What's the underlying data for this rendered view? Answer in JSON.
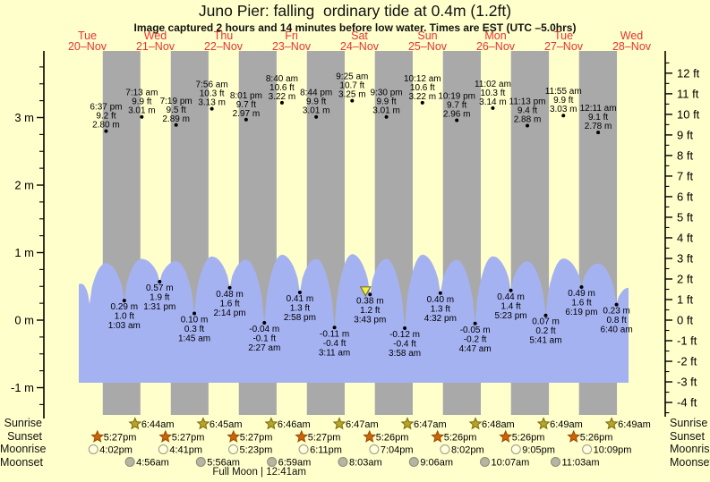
{
  "title": "Juno Pier: falling  ordinary tide at 0.4m (1.2ft)",
  "subtitle": "Image captured 2 hours and 14 minutes before low water. Times are EST (UTC –5.0hrs)",
  "colors": {
    "background": "#ffffcc",
    "night_band": "#a9a9a9",
    "water": "#a5b2f2",
    "date_label": "#e83333",
    "annotation_text": "#000000",
    "tide_dot": "#000000",
    "current_marker_fill": "#f0ee4a",
    "current_marker_stroke": "#77771c",
    "sunrise_star_fill": "#b8a427",
    "sunrise_star_stroke": "#7a6c10",
    "sunset_star_fill": "#cc6600",
    "sunset_star_stroke": "#99470a",
    "moonrise_fill": "#ffffdd",
    "moonrise_stroke": "#999988",
    "moonset_fill": "#b5b5a1",
    "moonset_stroke": "#8a8a7a"
  },
  "chart_data": {
    "type": "area",
    "title": "Juno Pier: falling  ordinary tide at 0.4m (1.2ft)",
    "days": [
      {
        "weekday": "Tue",
        "date": "20–Nov"
      },
      {
        "weekday": "Wed",
        "date": "21–Nov"
      },
      {
        "weekday": "Thu",
        "date": "22–Nov"
      },
      {
        "weekday": "Fri",
        "date": "23–Nov"
      },
      {
        "weekday": "Sat",
        "date": "24–Nov"
      },
      {
        "weekday": "Sun",
        "date": "25–Nov"
      },
      {
        "weekday": "Mon",
        "date": "26–Nov"
      },
      {
        "weekday": "Tue",
        "date": "27–Nov"
      },
      {
        "weekday": "Wed",
        "date": "28–Nov"
      }
    ],
    "y_axis_left": {
      "unit": "m",
      "values": [
        3,
        2,
        1,
        0,
        -1
      ],
      "labels": [
        "3 m",
        "2 m",
        "1 m",
        "0 m",
        "-1 m"
      ]
    },
    "y_axis_right": {
      "unit": "ft",
      "values": [
        12,
        11,
        10,
        9,
        8,
        7,
        6,
        5,
        4,
        3,
        2,
        1,
        0,
        -1,
        -2,
        -3,
        -4
      ],
      "labels": [
        "12 ft",
        "11 ft",
        "10 ft",
        "9 ft",
        "8 ft",
        "7 ft",
        "6 ft",
        "5 ft",
        "4 ft",
        "3 ft",
        "2 ft",
        "1 ft",
        "0 ft",
        "-1 ft",
        "-2 ft",
        "-3 ft",
        "-4 ft"
      ]
    },
    "high_tides": [
      {
        "day": 0,
        "time": "6:37 pm",
        "ft": "9.2 ft",
        "m": "2.80 m"
      },
      {
        "day": 1,
        "time": "7:13 am",
        "ft": "9.9 ft",
        "m": "3.01 m"
      },
      {
        "day": 1,
        "time": "7:19 pm",
        "ft": "9.5 ft",
        "m": "2.89 m"
      },
      {
        "day": 2,
        "time": "7:56 am",
        "ft": "10.3 ft",
        "m": "3.13 m"
      },
      {
        "day": 2,
        "time": "8:01 pm",
        "ft": "9.7 ft",
        "m": "2.97 m"
      },
      {
        "day": 3,
        "time": "8:40 am",
        "ft": "10.6 ft",
        "m": "3.22 m"
      },
      {
        "day": 3,
        "time": "8:44 pm",
        "ft": "9.9 ft",
        "m": "3.01 m"
      },
      {
        "day": 4,
        "time": "9:25 am",
        "ft": "10.7 ft",
        "m": "3.25 m"
      },
      {
        "day": 4,
        "time": "9:30 pm",
        "ft": "9.9 ft",
        "m": "3.01 m"
      },
      {
        "day": 5,
        "time": "10:12 am",
        "ft": "10.6 ft",
        "m": "3.22 m"
      },
      {
        "day": 5,
        "time": "10:19 pm",
        "ft": "9.7 ft",
        "m": "2.96 m"
      },
      {
        "day": 6,
        "time": "11:02 am",
        "ft": "10.3 ft",
        "m": "3.14 m"
      },
      {
        "day": 6,
        "time": "11:13 pm",
        "ft": "9.4 ft",
        "m": "2.88 m"
      },
      {
        "day": 7,
        "time": "11:55 am",
        "ft": "9.9 ft",
        "m": "3.03 m"
      },
      {
        "day": 8,
        "time": "12:11 am",
        "ft": "9.1 ft",
        "m": "2.78 m"
      }
    ],
    "low_tides": [
      {
        "day": 1,
        "time": "1:03 am",
        "ft": "1.0 ft",
        "m": "0.29 m"
      },
      {
        "day": 1,
        "time": "1:31 pm",
        "ft": "1.9 ft",
        "m": "0.57 m"
      },
      {
        "day": 2,
        "time": "1:45 am",
        "ft": "0.3 ft",
        "m": "0.10 m"
      },
      {
        "day": 2,
        "time": "2:14 pm",
        "ft": "1.6 ft",
        "m": "0.48 m"
      },
      {
        "day": 3,
        "time": "2:27 am",
        "ft": "-0.1 ft",
        "m": "-0.04 m"
      },
      {
        "day": 3,
        "time": "2:58 pm",
        "ft": "1.3 ft",
        "m": "0.41 m"
      },
      {
        "day": 4,
        "time": "3:11 am",
        "ft": "-0.4 ft",
        "m": "-0.11 m"
      },
      {
        "day": 4,
        "time": "3:43 pm",
        "ft": "1.2 ft",
        "m": "0.38 m",
        "current": true
      },
      {
        "day": 5,
        "time": "3:58 am",
        "ft": "-0.4 ft",
        "m": "-0.12 m"
      },
      {
        "day": 5,
        "time": "4:32 pm",
        "ft": "1.3 ft",
        "m": "0.40 m"
      },
      {
        "day": 6,
        "time": "4:47 am",
        "ft": "-0.2 ft",
        "m": "-0.05 m"
      },
      {
        "day": 6,
        "time": "5:23 pm",
        "ft": "1.4 ft",
        "m": "0.44 m"
      },
      {
        "day": 7,
        "time": "5:41 am",
        "ft": "0.2 ft",
        "m": "0.07 m"
      },
      {
        "day": 7,
        "time": "6:19 pm",
        "ft": "1.6 ft",
        "m": "0.49 m"
      },
      {
        "day": 8,
        "time": "6:40 am",
        "ft": "0.8 ft",
        "m": "0.23 m"
      }
    ],
    "astro": {
      "sunrise": {
        "label": "Sunrise",
        "times": [
          {
            "day": 1,
            "time": "6:44am"
          },
          {
            "day": 2,
            "time": "6:45am"
          },
          {
            "day": 3,
            "time": "6:46am"
          },
          {
            "day": 4,
            "time": "6:47am"
          },
          {
            "day": 5,
            "time": "6:47am"
          },
          {
            "day": 6,
            "time": "6:48am"
          },
          {
            "day": 7,
            "time": "6:49am"
          },
          {
            "day": 8,
            "time": "6:49am"
          }
        ]
      },
      "sunset": {
        "label": "Sunset",
        "times": [
          {
            "day": 0,
            "time": "5:27pm"
          },
          {
            "day": 1,
            "time": "5:27pm"
          },
          {
            "day": 2,
            "time": "5:27pm"
          },
          {
            "day": 3,
            "time": "5:27pm"
          },
          {
            "day": 4,
            "time": "5:26pm"
          },
          {
            "day": 5,
            "time": "5:26pm"
          },
          {
            "day": 6,
            "time": "5:26pm"
          },
          {
            "day": 7,
            "time": "5:26pm"
          }
        ]
      },
      "moonrise": {
        "label": "Moonrise",
        "times": [
          {
            "day": 0,
            "time": "4:02pm"
          },
          {
            "day": 1,
            "time": "4:41pm"
          },
          {
            "day": 2,
            "time": "5:23pm"
          },
          {
            "day": 3,
            "time": "6:11pm"
          },
          {
            "day": 4,
            "time": "7:04pm"
          },
          {
            "day": 5,
            "time": "8:02pm"
          },
          {
            "day": 6,
            "time": "9:05pm"
          },
          {
            "day": 7,
            "time": "10:09pm"
          }
        ]
      },
      "moonset": {
        "label": "Moonset",
        "times": [
          {
            "day": 1,
            "time": "4:56am"
          },
          {
            "day": 2,
            "time": "5:56am"
          },
          {
            "day": 3,
            "time": "6:59am"
          },
          {
            "day": 4,
            "time": "8:03am"
          },
          {
            "day": 5,
            "time": "9:06am"
          },
          {
            "day": 6,
            "time": "10:07am"
          },
          {
            "day": 7,
            "time": "11:03am"
          }
        ]
      },
      "full_moon": {
        "text": "Full Moon | 12:41am",
        "day": 3,
        "time": "12:41am"
      }
    }
  }
}
